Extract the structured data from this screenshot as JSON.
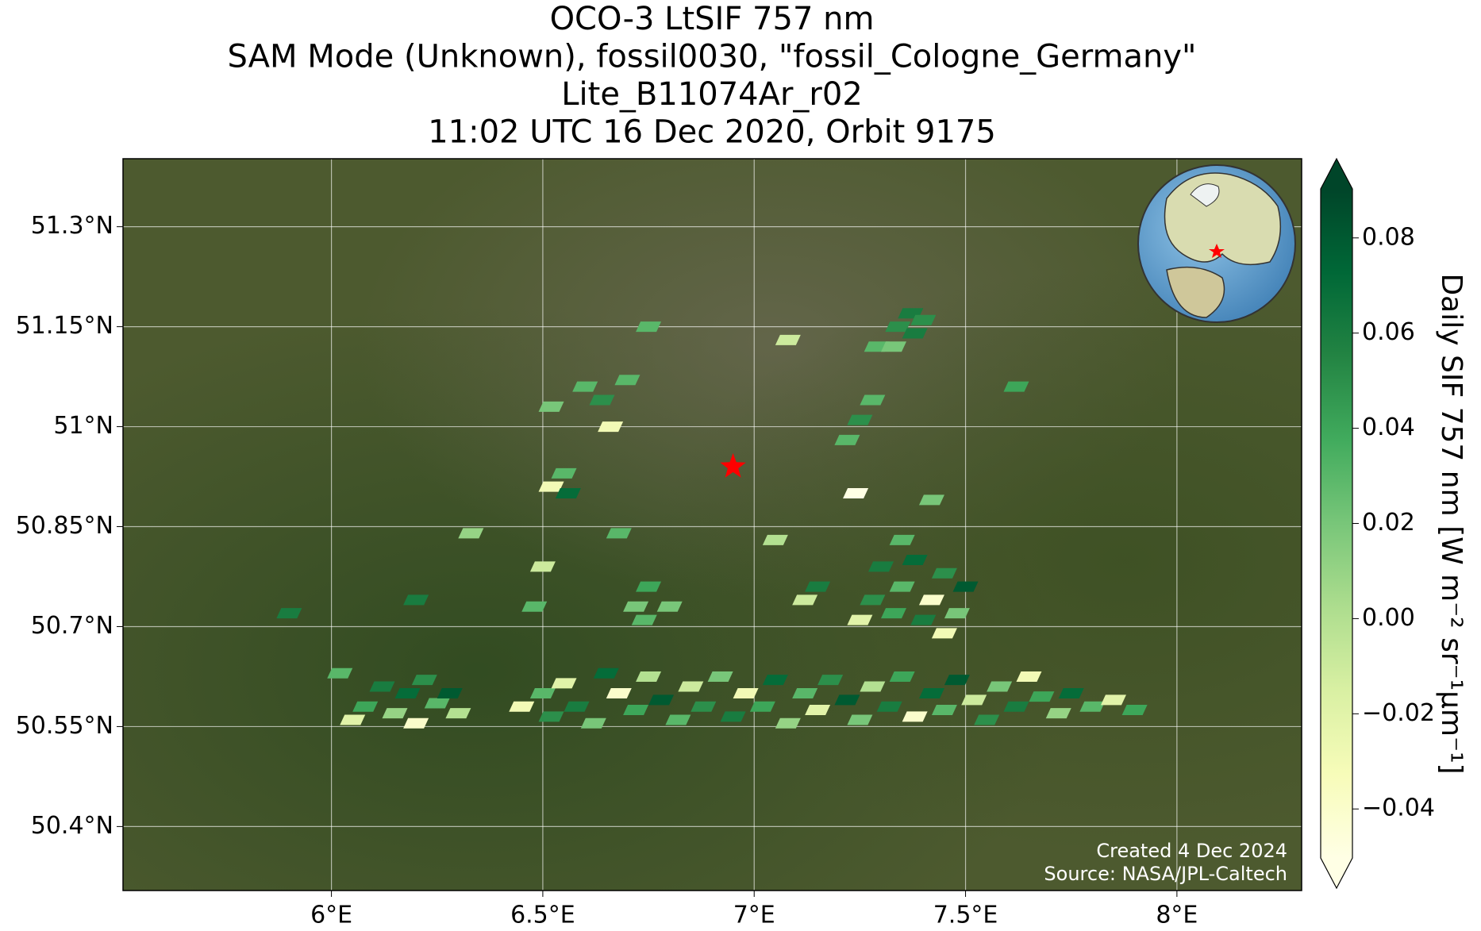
{
  "chart_data": {
    "type": "map",
    "title": [
      "OCO-3 LtSIF 757 nm",
      "SAM Mode (Unknown), fossil0030, \"fossil_Cologne_Germany\"",
      "Lite_B11074Ar_r02",
      "11:02 UTC 16 Dec 2020, Orbit 9175"
    ],
    "xlim": [
      5.507,
      8.295
    ],
    "ylim": [
      50.304,
      51.402
    ],
    "xticks": [
      {
        "value": 6,
        "label": "6°E"
      },
      {
        "value": 6.5,
        "label": "6.5°E"
      },
      {
        "value": 7,
        "label": "7°E"
      },
      {
        "value": 7.5,
        "label": "7.5°E"
      },
      {
        "value": 8,
        "label": "8°E"
      }
    ],
    "yticks": [
      {
        "value": 50.4,
        "label": "50.4°N"
      },
      {
        "value": 50.55,
        "label": "50.55°N"
      },
      {
        "value": 50.7,
        "label": "50.7°N"
      },
      {
        "value": 50.85,
        "label": "50.85°N"
      },
      {
        "value": 51,
        "label": "51°N"
      },
      {
        "value": 51.15,
        "label": "51.15°N"
      },
      {
        "value": 51.3,
        "label": "51.3°N"
      }
    ],
    "grid": true,
    "colorbar_label": "Daily SIF 757 nm [W m⁻² sr⁻¹μm⁻¹]",
    "clim": [
      -0.0503,
      0.0903
    ],
    "colorbar_ticks": [
      {
        "value": -0.04,
        "label": "−0.04"
      },
      {
        "value": -0.02,
        "label": "−0.02"
      },
      {
        "value": 0,
        "label": "0.00"
      },
      {
        "value": 0.02,
        "label": "0.02"
      },
      {
        "value": 0.04,
        "label": "0.04"
      },
      {
        "value": 0.06,
        "label": "0.06"
      },
      {
        "value": 0.08,
        "label": "0.08"
      }
    ],
    "colormap": [
      "#ffffe5",
      "#f7fcb9",
      "#d9f0a3",
      "#addd8e",
      "#78c679",
      "#41ab5d",
      "#238443",
      "#006837",
      "#004529"
    ],
    "site": {
      "lon": 6.95,
      "lat": 50.94,
      "color": "#ff0000"
    },
    "footprints": {
      "lon": [
        6.75,
        6.6,
        6.64,
        6.7,
        6.66,
        6.52,
        6.55,
        6.52,
        6.56,
        7.08,
        7.37,
        7.4,
        7.34,
        7.38,
        7.29,
        7.33,
        7.62,
        7.28,
        7.25,
        7.22,
        7.24,
        7.42,
        6.33,
        6.5,
        6.48,
        6.68,
        7.05,
        6.2,
        5.9,
        6.75,
        6.72,
        6.8,
        6.74,
        7.3,
        7.35,
        7.38,
        7.42,
        7.45,
        7.48,
        7.5,
        7.33,
        7.28,
        7.25,
        7.4,
        7.45,
        7.15,
        7.12,
        7.35,
        6.02,
        6.05,
        6.08,
        6.12,
        6.15,
        6.18,
        6.2,
        6.22,
        6.25,
        6.28,
        6.3,
        6.45,
        6.5,
        6.52,
        6.55,
        6.58,
        6.62,
        6.65,
        6.68,
        6.72,
        6.75,
        6.78,
        6.82,
        6.85,
        6.88,
        6.92,
        6.95,
        6.98,
        7.02,
        7.05,
        7.08,
        7.12,
        7.15,
        7.18,
        7.22,
        7.25,
        7.28,
        7.32,
        7.35,
        7.38,
        7.42,
        7.45,
        7.48,
        7.52,
        7.55,
        7.58,
        7.62,
        7.65,
        7.68,
        7.72,
        7.75,
        7.8,
        7.85,
        7.9
      ],
      "lat": [
        51.15,
        51.06,
        51.04,
        51.07,
        51.0,
        51.03,
        50.93,
        50.91,
        50.9,
        51.13,
        51.17,
        51.16,
        51.15,
        51.14,
        51.12,
        51.12,
        51.06,
        51.04,
        51.01,
        50.98,
        50.9,
        50.89,
        50.84,
        50.79,
        50.73,
        50.84,
        50.83,
        50.74,
        50.72,
        50.76,
        50.73,
        50.73,
        50.71,
        50.79,
        50.76,
        50.8,
        50.74,
        50.78,
        50.72,
        50.76,
        50.72,
        50.74,
        50.71,
        50.71,
        50.69,
        50.76,
        50.74,
        50.83,
        50.63,
        50.56,
        50.58,
        50.61,
        50.57,
        50.6,
        50.555,
        50.62,
        50.585,
        50.6,
        50.57,
        50.58,
        50.6,
        50.565,
        50.615,
        50.58,
        50.555,
        50.63,
        50.6,
        50.575,
        50.625,
        50.59,
        50.56,
        50.61,
        50.58,
        50.625,
        50.565,
        50.6,
        50.58,
        50.62,
        50.555,
        50.6,
        50.575,
        50.62,
        50.59,
        50.56,
        50.61,
        50.58,
        50.625,
        50.565,
        50.6,
        50.575,
        50.62,
        50.59,
        50.56,
        50.61,
        50.58,
        50.625,
        50.595,
        50.57,
        50.6,
        50.58,
        50.59,
        50.575
      ],
      "values": [
        0.03,
        0.03,
        0.05,
        0.03,
        -0.03,
        0.02,
        0.03,
        -0.03,
        0.07,
        -0.01,
        0.06,
        0.05,
        0.05,
        0.06,
        0.03,
        0.02,
        0.04,
        0.03,
        0.05,
        0.03,
        -0.05,
        0.02,
        0.01,
        -0.01,
        0.03,
        0.03,
        0.0,
        0.06,
        0.06,
        0.04,
        0.02,
        0.02,
        0.03,
        0.06,
        0.03,
        0.07,
        -0.04,
        0.05,
        0.02,
        0.08,
        0.04,
        0.05,
        -0.02,
        0.06,
        -0.03,
        0.06,
        -0.01,
        0.03,
        0.03,
        -0.02,
        0.04,
        0.06,
        0.01,
        0.07,
        -0.04,
        0.05,
        0.03,
        0.08,
        0.0,
        -0.03,
        0.03,
        0.05,
        -0.02,
        0.06,
        0.02,
        0.07,
        -0.04,
        0.04,
        0.0,
        0.08,
        0.03,
        -0.01,
        0.05,
        0.02,
        0.06,
        -0.03,
        0.04,
        0.07,
        0.01,
        0.03,
        -0.02,
        0.05,
        0.08,
        0.02,
        0.0,
        0.06,
        0.04,
        -0.04,
        0.07,
        0.03,
        0.08,
        -0.01,
        0.05,
        0.02,
        0.06,
        -0.03,
        0.04,
        0.01,
        0.07,
        0.03,
        -0.02,
        0.04
      ]
    },
    "credits": [
      "Created 4 Dec 2024",
      "Source: NASA/JPL-Caltech"
    ]
  }
}
